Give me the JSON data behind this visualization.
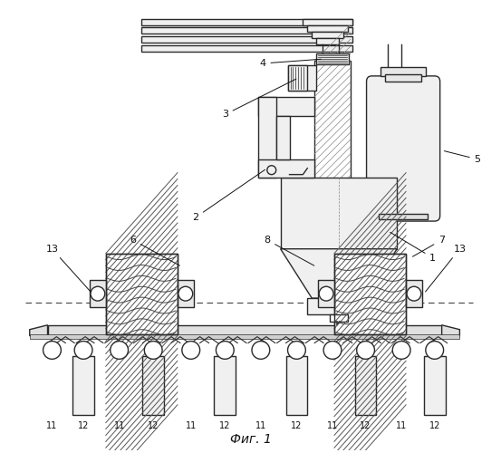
{
  "title": "Фиг. 1",
  "bg": "#ffffff",
  "lc": "#2a2a2a",
  "lw": 1.0,
  "figsize": [
    5.53,
    5.0
  ],
  "dpi": 100
}
